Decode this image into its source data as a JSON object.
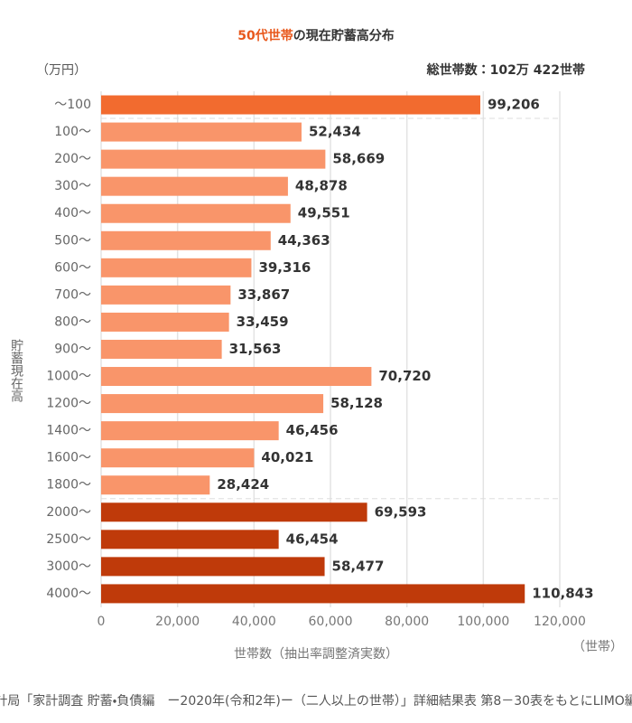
{
  "chart_data": {
    "type": "bar",
    "orientation": "horizontal",
    "title_highlight": "50代世帯",
    "title_rest": "の現在貯蓄高分布",
    "title_highlight_color": "#e8581c",
    "y_unit": "（万円）",
    "total_note": "総世帯数：102万 422世帯",
    "y_label": "貯蓄現在高",
    "x_label": "世帯数（抽出率調整済実数）",
    "x_unit": "（世帯）",
    "source": "総務省統計局「家計調査 貯蓄・負債編　ー2020年(令和2年)ー（二人以上の世帯）」詳細結果表 第8－30表をもとにLIMO編集部作成",
    "categories": [
      "～100",
      "100～",
      "200～",
      "300～",
      "400～",
      "500～",
      "600～",
      "700～",
      "800～",
      "900～",
      "1000～",
      "1200～",
      "1400～",
      "1600～",
      "1800～",
      "2000～",
      "2500～",
      "3000～",
      "4000～"
    ],
    "values": [
      99206,
      52434,
      58669,
      48878,
      49551,
      44363,
      39316,
      33867,
      33459,
      31563,
      70720,
      58128,
      46456,
      40021,
      28424,
      69593,
      46454,
      58477,
      110843
    ],
    "value_labels": [
      "99,206",
      "52,434",
      "58,669",
      "48,878",
      "49,551",
      "44,363",
      "39,316",
      "33,867",
      "33,459",
      "31,563",
      "70,720",
      "58,128",
      "46,456",
      "40,021",
      "28,424",
      "69,593",
      "46,454",
      "58,477",
      "110,843"
    ],
    "colors": [
      "#f26b2f",
      "#f9956a",
      "#f9956a",
      "#f9956a",
      "#f9956a",
      "#f9956a",
      "#f9956a",
      "#f9956a",
      "#f9956a",
      "#f9956a",
      "#f9956a",
      "#f9956a",
      "#f9956a",
      "#f9956a",
      "#f9956a",
      "#bf3a0a",
      "#bf3a0a",
      "#bf3a0a",
      "#bf3a0a"
    ],
    "xlim": [
      0,
      120000
    ],
    "xticks": [
      0,
      {
        "value": 20000,
        "label": "20,000"
      },
      {
        "value": 40000,
        "label": "40,000"
      },
      {
        "value": 60000,
        "label": "60,000"
      },
      {
        "value": 80000,
        "label": "80,000"
      },
      {
        "value": 100000,
        "label": "100,000"
      },
      {
        "value": 120000,
        "label": "120,000"
      }
    ],
    "grid": true
  }
}
